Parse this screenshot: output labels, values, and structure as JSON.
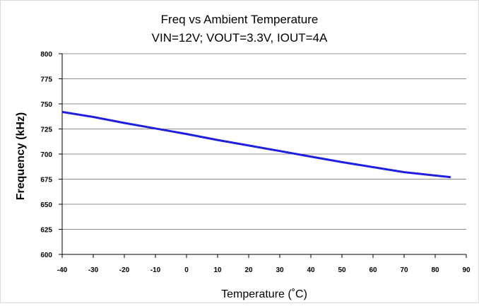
{
  "chart_data": {
    "type": "line",
    "title": "Freq vs Ambient Temperature",
    "subtitle": "VIN=12V; VOUT=3.3V, IOUT=4A",
    "xlabel": "Temperature (˚C)",
    "ylabel": "Frequency (kHz)",
    "xlim": [
      -40,
      90
    ],
    "ylim": [
      600,
      800
    ],
    "x_ticks": [
      -40,
      -30,
      -20,
      -10,
      0,
      10,
      20,
      30,
      40,
      50,
      60,
      70,
      80,
      90
    ],
    "y_ticks": [
      600,
      625,
      650,
      675,
      700,
      725,
      750,
      775,
      800
    ],
    "grid": "horizontal",
    "series": [
      {
        "color": "#1f1fe0",
        "x": [
          -40,
          -30,
          -20,
          -10,
          0,
          10,
          20,
          30,
          40,
          50,
          60,
          70,
          85
        ],
        "y": [
          742,
          737,
          731,
          725.5,
          720,
          714,
          708.5,
          703,
          697.5,
          692,
          687,
          682,
          677
        ]
      }
    ]
  }
}
